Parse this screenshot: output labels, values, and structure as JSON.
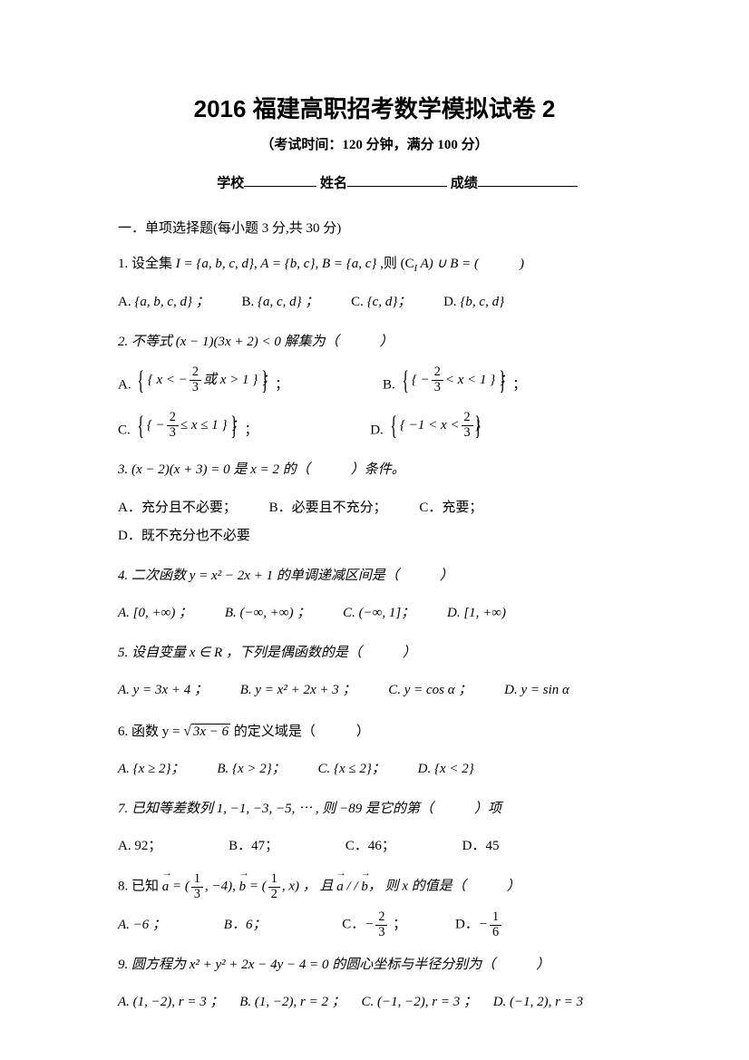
{
  "header": {
    "title": "2016 福建高职招考数学模拟试卷 2",
    "subtitle": "（考试时间：120 分钟，满分 100 分）",
    "school_label": "学校",
    "name_label": "姓名",
    "score_label": "成绩"
  },
  "section1": {
    "heading": "一．单项选择题(每小题 3 分,共 30 分)"
  },
  "q1": {
    "stem_pre": "1.  设全集 ",
    "I": "I",
    "eq1": " = {a, b, c, d}, A = {b, c}, B = {a, c}",
    "stem_post": " ,则 (C",
    "sub": "I",
    "stem_post2": " A) ∪ B = (　　　)",
    "A_label": "A.",
    "A": "{a, b, c, d} ；",
    "B_label": "B.",
    "B": "{a, c, d} ；",
    "C_label": "C.",
    "C": "{c, d}；",
    "D_label": "D.",
    "D": "{b, c, d}"
  },
  "q2": {
    "stem": "2.  不等式 (x − 1)(3x + 2) < 0 解集为（　　　）",
    "A_label": "A.",
    "A_pre": "{ x < −",
    "A_fn": "2",
    "A_fd": "3",
    "A_post": " 或 x > 1 } ；",
    "B_label": "B.",
    "B_pre": "{ −",
    "B_fn": "2",
    "B_fd": "3",
    "B_post": " < x < 1 } ；",
    "C_label": "C.",
    "C_pre": "{ −",
    "C_fn": "2",
    "C_fd": "3",
    "C_post": " ≤ x ≤ 1 } ；",
    "D_label": "D.",
    "D_pre": "{ −1 < x < ",
    "D_fn": "2",
    "D_fd": "3",
    "D_post": " }"
  },
  "q3": {
    "stem": "3.  (x − 2)(x + 3) = 0 是 x = 2 的（　　　）条件。",
    "A": "A．充分且不必要；",
    "B": "B．必要且不充分；",
    "C": "C．充要；",
    "D": "D．既不充分也不必要"
  },
  "q4": {
    "stem": "4.  二次函数 y = x² − 2x + 1 的单调递减区间是（　　　）",
    "A": "A.  [0, +∞) ；",
    "B": "B.  (−∞, +∞) ；",
    "C": "C.  (−∞, 1]；",
    "D": "D.  [1, +∞)"
  },
  "q5": {
    "stem": "5.  设自变量 x ∈ R ，下列是偶函数的是（　　　）",
    "A": "A.  y = 3x + 4 ；",
    "B": "B.  y = x² + 2x + 3 ；",
    "C": "C.  y = cos α  ；",
    "D": "D.  y = sin α"
  },
  "q6": {
    "stem_pre": "6.  函数 y = ",
    "rad": "3x − 6",
    "stem_post": " 的定义域是（　　　）",
    "A": "A.  {x ≥ 2}；",
    "B": "B.  {x > 2}；",
    "C": "C.  {x ≤ 2}；",
    "D": "D.  {x < 2}"
  },
  "q7": {
    "stem": "7.  已知等差数列 1, −1, −3, −5, ⋯ ,  则 −89 是它的第（　　　）项",
    "A": "A.  92；",
    "B": "B．47；",
    "C": "C．46；",
    "D": "D．45"
  },
  "q8": {
    "stem_pre": "8.  已知 ",
    "va": "a",
    "mid1": " = (",
    "f1n": "1",
    "f1d": "3",
    "mid2": ", −4), ",
    "vb": "b",
    "mid3": " = (",
    "f2n": "1",
    "f2d": "2",
    "mid4": ", x) ， 且 ",
    "va2": "a",
    "par": " / / ",
    "vb2": "b",
    "mid5": "， 则 x 的值是（　　　）",
    "A": "A.  −6 ；",
    "B": "B．6；",
    "C_label": "C．",
    "C_pre": "−",
    "C_fn": "2",
    "C_fd": "3",
    "C_post": " ；",
    "D_label": "D．",
    "D_pre": "−",
    "D_fn": "1",
    "D_fd": "6"
  },
  "q9": {
    "stem": "9.  圆方程为 x² + y² + 2x − 4y − 4 = 0 的圆心坐标与半径分别为（　　　）",
    "A": "A.  (1, −2), r = 3 ；",
    "B": "B.  (1, −2), r = 2 ；",
    "C": "C.  (−1, −2), r = 3 ；",
    "D": "D.  (−1, 2), r = 3"
  }
}
